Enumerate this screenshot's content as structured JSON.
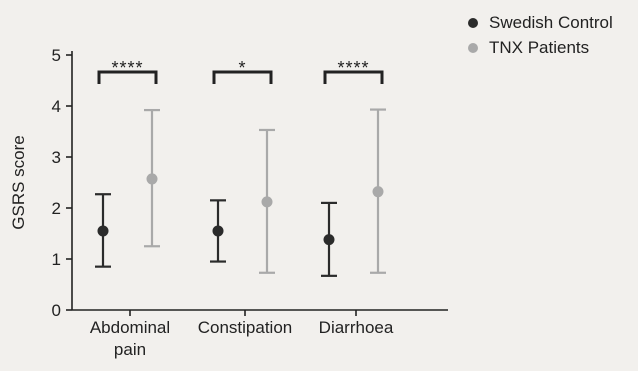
{
  "chart_data": {
    "type": "scatter",
    "ylabel": "GSRS score",
    "ylim": [
      0,
      5
    ],
    "yticks": [
      "0",
      "1",
      "2",
      "3",
      "4",
      "5"
    ],
    "categories": [
      "Abdominal\npain",
      "Constipation",
      "Diarrhoea"
    ],
    "series": [
      {
        "name": "Swedish Control",
        "color": "#2b2b2b",
        "mean": [
          1.55,
          1.55,
          1.38
        ],
        "lower": [
          0.85,
          0.95,
          0.67
        ],
        "upper": [
          2.27,
          2.15,
          2.1
        ]
      },
      {
        "name": "TNX Patients",
        "color": "#a9a9a9",
        "mean": [
          2.57,
          2.12,
          2.32
        ],
        "lower": [
          1.25,
          0.73,
          0.73
        ],
        "upper": [
          3.92,
          3.53,
          3.93
        ]
      }
    ],
    "significance": [
      "****",
      "*",
      "****"
    ],
    "grid": false,
    "legend_position": "top-right"
  }
}
